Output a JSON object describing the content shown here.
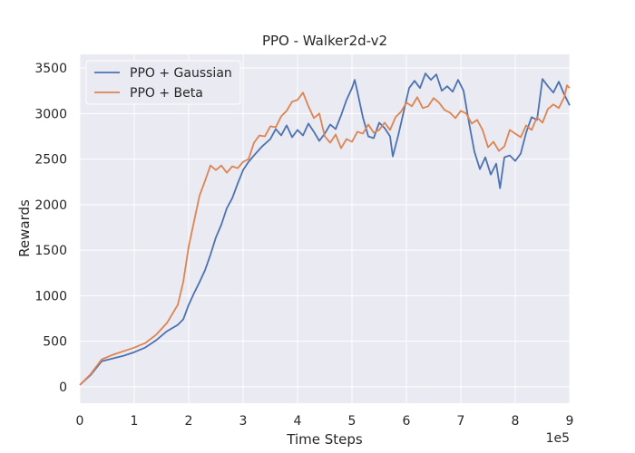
{
  "chart_data": {
    "type": "line",
    "title": "PPO - Walker2d-v2",
    "xlabel": "Time Steps",
    "ylabel": "Rewards",
    "x_offset_label": "1e5",
    "xlim": [
      0,
      9
    ],
    "ylim": [
      -180,
      3650
    ],
    "x_ticks": [
      0,
      1,
      2,
      3,
      4,
      5,
      6,
      7,
      8,
      9
    ],
    "y_ticks": [
      0,
      500,
      1000,
      1500,
      2000,
      2500,
      3000,
      3500
    ],
    "grid": true,
    "legend_position": "top-left",
    "colors": {
      "background": "#eaeaf2",
      "grid": "#ffffff",
      "gaussian": "#4c72b0",
      "beta": "#dd8452"
    },
    "series": [
      {
        "name": "PPO + Gaussian",
        "color": "#4c72b0",
        "points": [
          [
            0,
            20
          ],
          [
            0.2,
            130
          ],
          [
            0.4,
            280
          ],
          [
            0.6,
            310
          ],
          [
            0.8,
            340
          ],
          [
            1.0,
            380
          ],
          [
            1.2,
            430
          ],
          [
            1.4,
            510
          ],
          [
            1.6,
            610
          ],
          [
            1.8,
            680
          ],
          [
            1.9,
            740
          ],
          [
            2.0,
            900
          ],
          [
            2.1,
            1030
          ],
          [
            2.2,
            1150
          ],
          [
            2.3,
            1280
          ],
          [
            2.4,
            1450
          ],
          [
            2.5,
            1640
          ],
          [
            2.6,
            1780
          ],
          [
            2.7,
            1960
          ],
          [
            2.8,
            2070
          ],
          [
            2.9,
            2230
          ],
          [
            3.0,
            2380
          ],
          [
            3.1,
            2470
          ],
          [
            3.2,
            2540
          ],
          [
            3.35,
            2640
          ],
          [
            3.5,
            2720
          ],
          [
            3.6,
            2830
          ],
          [
            3.7,
            2760
          ],
          [
            3.8,
            2870
          ],
          [
            3.9,
            2740
          ],
          [
            4.0,
            2820
          ],
          [
            4.1,
            2760
          ],
          [
            4.2,
            2890
          ],
          [
            4.3,
            2800
          ],
          [
            4.4,
            2700
          ],
          [
            4.5,
            2780
          ],
          [
            4.6,
            2880
          ],
          [
            4.7,
            2830
          ],
          [
            4.8,
            2980
          ],
          [
            4.9,
            3150
          ],
          [
            5.0,
            3280
          ],
          [
            5.05,
            3370
          ],
          [
            5.1,
            3240
          ],
          [
            5.2,
            2960
          ],
          [
            5.3,
            2750
          ],
          [
            5.4,
            2730
          ],
          [
            5.5,
            2900
          ],
          [
            5.6,
            2840
          ],
          [
            5.7,
            2750
          ],
          [
            5.75,
            2530
          ],
          [
            5.85,
            2760
          ],
          [
            5.95,
            3020
          ],
          [
            6.05,
            3280
          ],
          [
            6.15,
            3360
          ],
          [
            6.25,
            3280
          ],
          [
            6.35,
            3440
          ],
          [
            6.45,
            3370
          ],
          [
            6.55,
            3430
          ],
          [
            6.65,
            3250
          ],
          [
            6.75,
            3300
          ],
          [
            6.85,
            3240
          ],
          [
            6.95,
            3370
          ],
          [
            7.05,
            3250
          ],
          [
            7.15,
            2900
          ],
          [
            7.25,
            2580
          ],
          [
            7.35,
            2390
          ],
          [
            7.45,
            2520
          ],
          [
            7.55,
            2330
          ],
          [
            7.65,
            2450
          ],
          [
            7.72,
            2180
          ],
          [
            7.8,
            2520
          ],
          [
            7.9,
            2540
          ],
          [
            8.0,
            2480
          ],
          [
            8.1,
            2560
          ],
          [
            8.2,
            2790
          ],
          [
            8.3,
            2960
          ],
          [
            8.4,
            2930
          ],
          [
            8.5,
            3380
          ],
          [
            8.6,
            3300
          ],
          [
            8.7,
            3230
          ],
          [
            8.8,
            3350
          ],
          [
            8.9,
            3210
          ],
          [
            9.0,
            3090
          ]
        ]
      },
      {
        "name": "PPO + Beta",
        "color": "#dd8452",
        "points": [
          [
            0,
            20
          ],
          [
            0.2,
            140
          ],
          [
            0.4,
            300
          ],
          [
            0.6,
            350
          ],
          [
            0.8,
            390
          ],
          [
            1.0,
            430
          ],
          [
            1.2,
            480
          ],
          [
            1.4,
            570
          ],
          [
            1.6,
            700
          ],
          [
            1.8,
            900
          ],
          [
            1.9,
            1150
          ],
          [
            2.0,
            1540
          ],
          [
            2.1,
            1820
          ],
          [
            2.2,
            2100
          ],
          [
            2.3,
            2260
          ],
          [
            2.4,
            2430
          ],
          [
            2.5,
            2380
          ],
          [
            2.6,
            2430
          ],
          [
            2.7,
            2350
          ],
          [
            2.8,
            2420
          ],
          [
            2.9,
            2400
          ],
          [
            3.0,
            2470
          ],
          [
            3.1,
            2500
          ],
          [
            3.2,
            2680
          ],
          [
            3.3,
            2760
          ],
          [
            3.4,
            2750
          ],
          [
            3.5,
            2860
          ],
          [
            3.6,
            2850
          ],
          [
            3.7,
            2970
          ],
          [
            3.8,
            3030
          ],
          [
            3.9,
            3130
          ],
          [
            4.0,
            3150
          ],
          [
            4.1,
            3230
          ],
          [
            4.2,
            3080
          ],
          [
            4.3,
            2950
          ],
          [
            4.4,
            3000
          ],
          [
            4.5,
            2750
          ],
          [
            4.6,
            2680
          ],
          [
            4.7,
            2770
          ],
          [
            4.8,
            2620
          ],
          [
            4.9,
            2720
          ],
          [
            5.0,
            2690
          ],
          [
            5.1,
            2800
          ],
          [
            5.2,
            2780
          ],
          [
            5.3,
            2880
          ],
          [
            5.4,
            2790
          ],
          [
            5.5,
            2820
          ],
          [
            5.6,
            2900
          ],
          [
            5.7,
            2820
          ],
          [
            5.8,
            2960
          ],
          [
            5.9,
            3020
          ],
          [
            6.0,
            3120
          ],
          [
            6.1,
            3080
          ],
          [
            6.2,
            3180
          ],
          [
            6.3,
            3060
          ],
          [
            6.4,
            3080
          ],
          [
            6.5,
            3170
          ],
          [
            6.6,
            3120
          ],
          [
            6.7,
            3040
          ],
          [
            6.8,
            3010
          ],
          [
            6.9,
            2950
          ],
          [
            7.0,
            3030
          ],
          [
            7.1,
            3000
          ],
          [
            7.2,
            2890
          ],
          [
            7.3,
            2930
          ],
          [
            7.4,
            2820
          ],
          [
            7.5,
            2630
          ],
          [
            7.6,
            2690
          ],
          [
            7.7,
            2590
          ],
          [
            7.8,
            2640
          ],
          [
            7.9,
            2820
          ],
          [
            8.0,
            2780
          ],
          [
            8.1,
            2740
          ],
          [
            8.2,
            2870
          ],
          [
            8.3,
            2820
          ],
          [
            8.4,
            2960
          ],
          [
            8.5,
            2900
          ],
          [
            8.6,
            3050
          ],
          [
            8.7,
            3100
          ],
          [
            8.8,
            3060
          ],
          [
            8.9,
            3180
          ],
          [
            8.95,
            3310
          ],
          [
            9.0,
            3280
          ]
        ]
      }
    ]
  }
}
